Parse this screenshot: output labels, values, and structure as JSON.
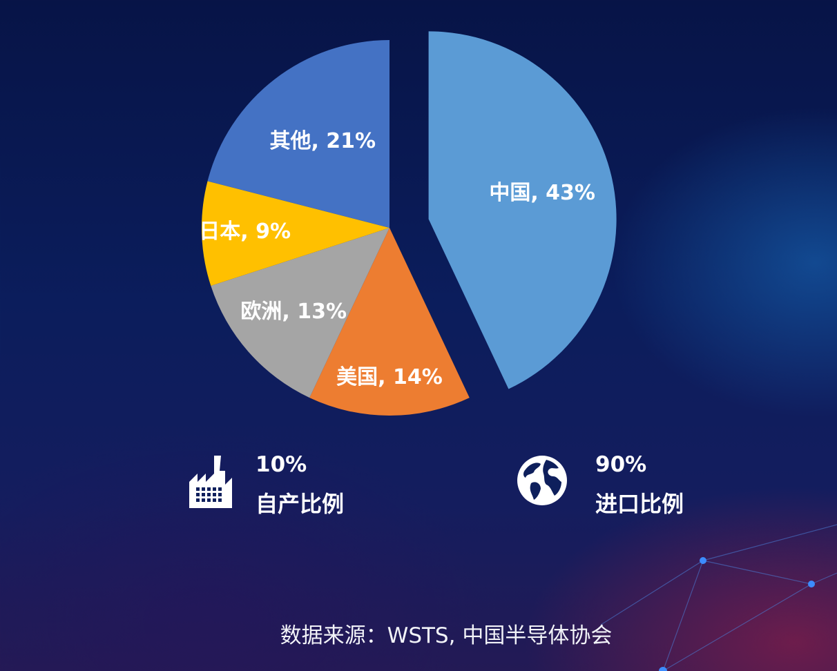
{
  "chart_data": {
    "type": "pie",
    "title": "",
    "categories": [
      "中国",
      "美国",
      "欧洲",
      "日本",
      "其他"
    ],
    "values": [
      43,
      14,
      13,
      9,
      21
    ],
    "labels": [
      "中国, 43%",
      "美国, 14%",
      "欧洲, 13%",
      "日本, 9%",
      "其他, 21%"
    ],
    "colors": [
      "#5b9bd5",
      "#ed7d31",
      "#a5a5a5",
      "#ffc000",
      "#4472c4"
    ],
    "exploded": "中国",
    "legend": "none"
  },
  "stats": {
    "domestic": {
      "value": "10%",
      "label": "自产比例",
      "icon": "factory-icon"
    },
    "import": {
      "value": "90%",
      "label": "进口比例",
      "icon": "globe-icon"
    }
  },
  "source": "数据来源：WSTS, 中国半导体协会",
  "theme": {
    "background": "#0b1d5c",
    "text": "#ffffff"
  }
}
